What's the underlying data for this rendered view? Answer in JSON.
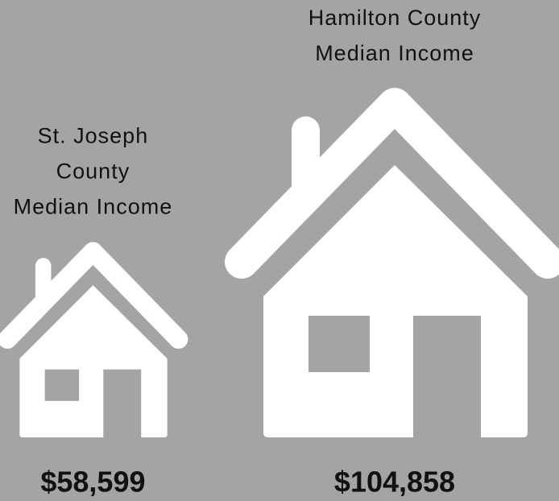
{
  "chart_data": {
    "type": "pictograph",
    "categories": [
      [
        "St. Joseph",
        "County",
        "Median Income"
      ],
      [
        "Hamilton County",
        "Median Income"
      ]
    ],
    "values": [
      58599,
      104858
    ],
    "value_labels": [
      "$58,599",
      "$104,858"
    ],
    "color": "#ffffff"
  }
}
